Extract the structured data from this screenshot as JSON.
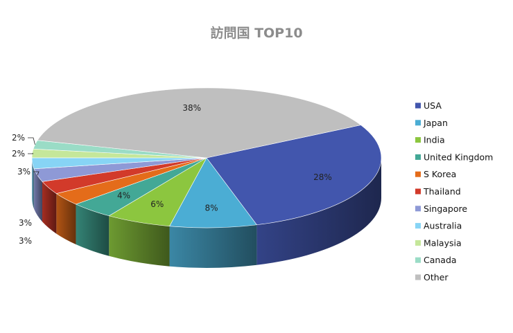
{
  "chart_data": {
    "type": "pie",
    "style": "3d",
    "title": "訪問国 TOP10",
    "legend_position": "right",
    "slices": [
      {
        "label": "USA",
        "value": 28,
        "display": "28%",
        "color": "#4256ad"
      },
      {
        "label": "Japan",
        "value": 8,
        "display": "8%",
        "color": "#4badd4"
      },
      {
        "label": "India",
        "value": 6,
        "display": "6%",
        "color": "#8cc63f"
      },
      {
        "label": "United Kingdom",
        "value": 4,
        "display": "4%",
        "color": "#43a896"
      },
      {
        "label": "S Korea",
        "value": 3,
        "display": "3%",
        "color": "#e46c1a"
      },
      {
        "label": "Thailand",
        "value": 3,
        "display": "3%",
        "color": "#d23a2a"
      },
      {
        "label": "Singapore",
        "value": 3,
        "display": "3%",
        "color": "#8e99d6"
      },
      {
        "label": "Australia",
        "value": 2.5,
        "display": "",
        "color": "#87d4f5"
      },
      {
        "label": "Malaysia",
        "value": 2,
        "display": "2%",
        "color": "#c5e79a"
      },
      {
        "label": "Canada",
        "value": 2,
        "display": "2%",
        "color": "#9adcc6"
      },
      {
        "label": "Other",
        "value": 38,
        "display": "38%",
        "color": "#bfbfbf"
      }
    ]
  }
}
